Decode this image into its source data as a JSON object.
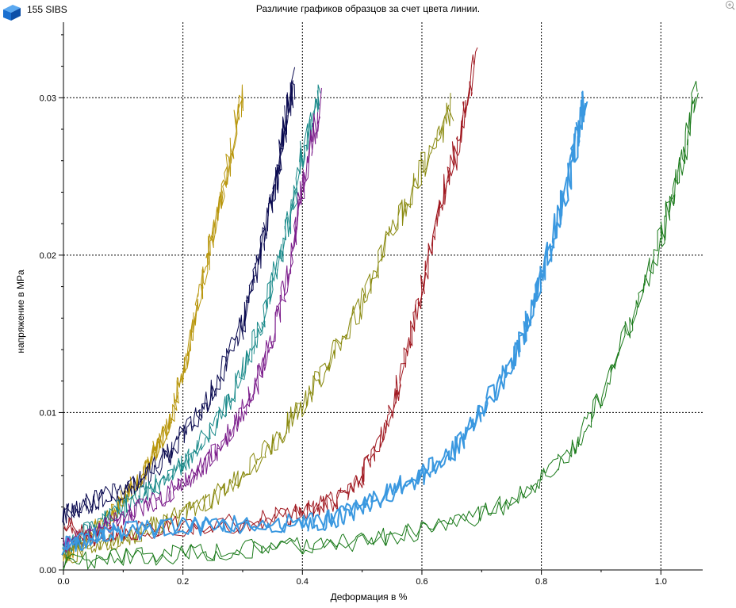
{
  "app": {
    "name": "155 SIBS",
    "icon": "blue-box-icon",
    "zoom_icon": "zoom-icon"
  },
  "chart_data": {
    "type": "line",
    "title": "Различие графиков образцов за счет цвета линии.",
    "xlabel": "Деформация в %",
    "ylabel": "напряжение в MPa",
    "xlim": [
      0,
      1.07
    ],
    "ylim": [
      0,
      0.0348
    ],
    "x_ticks": [
      "0.0",
      "0.2",
      "0.4",
      "0.6",
      "0.8",
      "1.0"
    ],
    "y_ticks": [
      "0.00",
      "0.01",
      "0.02",
      "0.03"
    ],
    "grid": "dashed",
    "legend": "none",
    "series": [
      {
        "color": "#b8960c",
        "points": [
          [
            0.0,
            0.001
          ],
          [
            0.02,
            0.0015
          ],
          [
            0.05,
            0.0025
          ],
          [
            0.08,
            0.0035
          ],
          [
            0.1,
            0.0045
          ],
          [
            0.12,
            0.0055
          ],
          [
            0.14,
            0.0065
          ],
          [
            0.16,
            0.008
          ],
          [
            0.18,
            0.0095
          ],
          [
            0.2,
            0.0125
          ],
          [
            0.22,
            0.016
          ],
          [
            0.24,
            0.0195
          ],
          [
            0.26,
            0.023
          ],
          [
            0.28,
            0.0265
          ],
          [
            0.3,
            0.0303
          ]
        ]
      },
      {
        "color": "#0a0a50",
        "points": [
          [
            0.0,
            0.0035
          ],
          [
            0.03,
            0.004
          ],
          [
            0.06,
            0.0045
          ],
          [
            0.1,
            0.005
          ],
          [
            0.14,
            0.006
          ],
          [
            0.18,
            0.0075
          ],
          [
            0.22,
            0.0095
          ],
          [
            0.26,
            0.012
          ],
          [
            0.3,
            0.0155
          ],
          [
            0.32,
            0.0185
          ],
          [
            0.34,
            0.022
          ],
          [
            0.36,
            0.0255
          ],
          [
            0.37,
            0.028
          ],
          [
            0.385,
            0.0308
          ]
        ]
      },
      {
        "color": "#1a8a8a",
        "points": [
          [
            0.0,
            0.0012
          ],
          [
            0.04,
            0.0025
          ],
          [
            0.08,
            0.0035
          ],
          [
            0.12,
            0.0045
          ],
          [
            0.16,
            0.0055
          ],
          [
            0.2,
            0.0068
          ],
          [
            0.24,
            0.0085
          ],
          [
            0.28,
            0.011
          ],
          [
            0.32,
            0.0145
          ],
          [
            0.35,
            0.018
          ],
          [
            0.38,
            0.0225
          ],
          [
            0.4,
            0.0265
          ],
          [
            0.43,
            0.03
          ]
        ]
      },
      {
        "color": "#7a1a8a",
        "points": [
          [
            0.0,
            0.0015
          ],
          [
            0.04,
            0.0022
          ],
          [
            0.08,
            0.003
          ],
          [
            0.12,
            0.0038
          ],
          [
            0.16,
            0.0045
          ],
          [
            0.2,
            0.0055
          ],
          [
            0.24,
            0.0068
          ],
          [
            0.28,
            0.0088
          ],
          [
            0.32,
            0.0115
          ],
          [
            0.35,
            0.015
          ],
          [
            0.38,
            0.0195
          ],
          [
            0.4,
            0.024
          ],
          [
            0.43,
            0.0298
          ]
        ]
      },
      {
        "color": "#8a8a10",
        "points": [
          [
            0.0,
            0.0008
          ],
          [
            0.05,
            0.0015
          ],
          [
            0.1,
            0.002
          ],
          [
            0.15,
            0.0028
          ],
          [
            0.2,
            0.0035
          ],
          [
            0.25,
            0.0045
          ],
          [
            0.3,
            0.006
          ],
          [
            0.35,
            0.008
          ],
          [
            0.4,
            0.0105
          ],
          [
            0.45,
            0.0135
          ],
          [
            0.5,
            0.017
          ],
          [
            0.55,
            0.0215
          ],
          [
            0.6,
            0.0255
          ],
          [
            0.65,
            0.0293
          ]
        ]
      },
      {
        "color": "#a01820",
        "points": [
          [
            0.0,
            0.003
          ],
          [
            0.05,
            0.002
          ],
          [
            0.1,
            0.0025
          ],
          [
            0.2,
            0.0028
          ],
          [
            0.3,
            0.003
          ],
          [
            0.38,
            0.0035
          ],
          [
            0.42,
            0.004
          ],
          [
            0.46,
            0.0045
          ],
          [
            0.5,
            0.006
          ],
          [
            0.54,
            0.009
          ],
          [
            0.57,
            0.013
          ],
          [
            0.6,
            0.018
          ],
          [
            0.63,
            0.023
          ],
          [
            0.66,
            0.027
          ],
          [
            0.69,
            0.0325
          ]
        ]
      },
      {
        "color": "#3a98e0",
        "points": [
          [
            0.0,
            0.0015
          ],
          [
            0.05,
            0.002
          ],
          [
            0.1,
            0.0025
          ],
          [
            0.2,
            0.0028
          ],
          [
            0.3,
            0.0028
          ],
          [
            0.4,
            0.003
          ],
          [
            0.45,
            0.0032
          ],
          [
            0.5,
            0.004
          ],
          [
            0.55,
            0.005
          ],
          [
            0.6,
            0.006
          ],
          [
            0.65,
            0.0075
          ],
          [
            0.7,
            0.01
          ],
          [
            0.75,
            0.013
          ],
          [
            0.78,
            0.016
          ],
          [
            0.81,
            0.02
          ],
          [
            0.84,
            0.024
          ],
          [
            0.86,
            0.0275
          ],
          [
            0.875,
            0.0303
          ]
        ]
      },
      {
        "color": "#1a7a1a",
        "points": [
          [
            0.0,
            0.0005
          ],
          [
            0.1,
            0.0008
          ],
          [
            0.2,
            0.001
          ],
          [
            0.3,
            0.0013
          ],
          [
            0.4,
            0.0015
          ],
          [
            0.5,
            0.0018
          ],
          [
            0.6,
            0.0025
          ],
          [
            0.7,
            0.0035
          ],
          [
            0.78,
            0.005
          ],
          [
            0.85,
            0.0075
          ],
          [
            0.9,
            0.011
          ],
          [
            0.95,
            0.016
          ],
          [
            1.0,
            0.021
          ],
          [
            1.03,
            0.025
          ],
          [
            1.06,
            0.0305
          ]
        ]
      }
    ]
  }
}
